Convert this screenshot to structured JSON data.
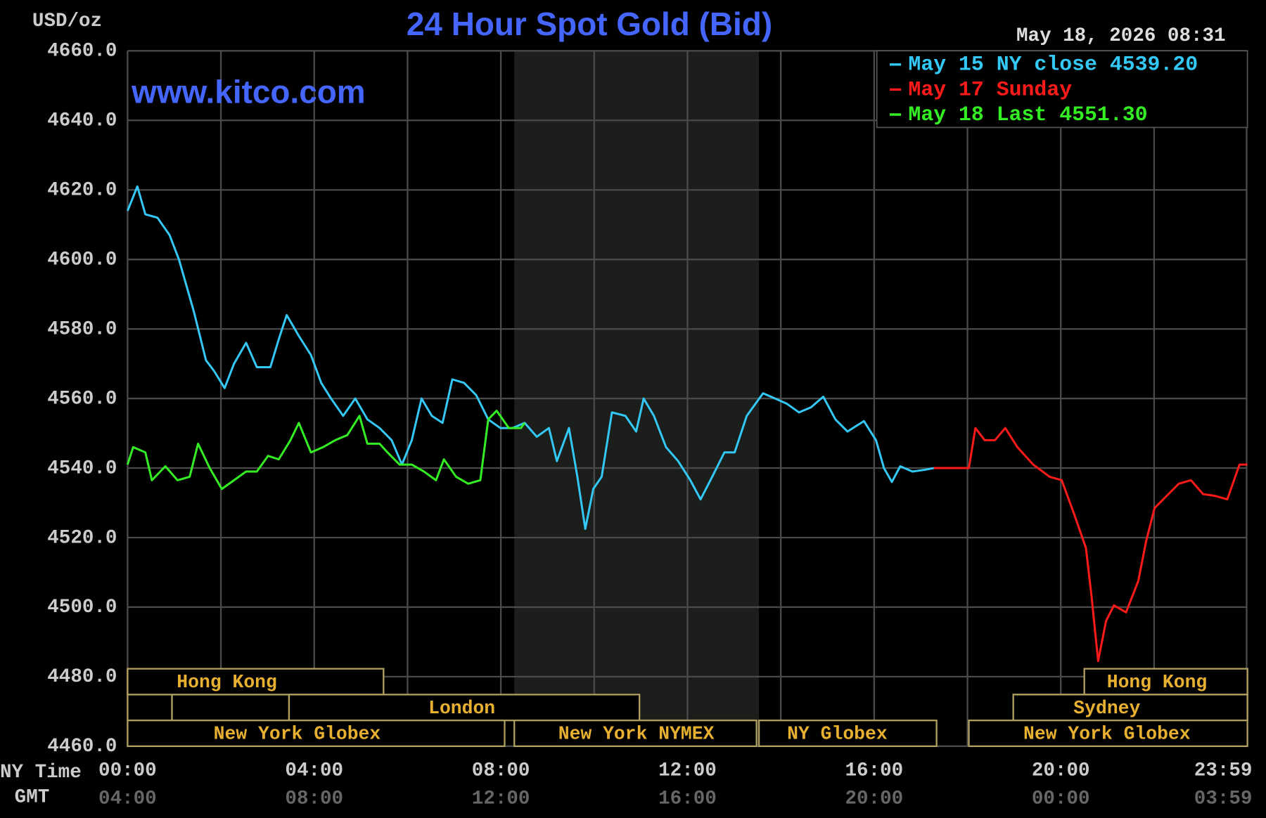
{
  "chart_data": {
    "type": "line",
    "title": "24 Hour Spot Gold (Bid)",
    "y_label": "USD/oz",
    "timestamp": "May 18, 2026 08:31",
    "watermark": "www.kitco.com",
    "x_label": "NY Time",
    "x2_label": "GMT",
    "xlim": [
      0,
      24
    ],
    "xticks": [
      {
        "value": 0,
        "label": "00:00"
      },
      {
        "value": 4,
        "label": "04:00"
      },
      {
        "value": 8,
        "label": "08:00"
      },
      {
        "value": 12,
        "label": "12:00"
      },
      {
        "value": 16,
        "label": "16:00"
      },
      {
        "value": 20,
        "label": "20:00"
      },
      {
        "value": 23.9833,
        "label": "23:59"
      }
    ],
    "x2tick_labels": [
      "04:00",
      "08:00",
      "12:00",
      "16:00",
      "20:00",
      "00:00",
      "03:59"
    ],
    "minor_xticks": [
      2,
      6,
      10,
      14,
      18,
      22
    ],
    "ylim": [
      4460,
      4660
    ],
    "yticks": [
      {
        "value": 4460,
        "label": "4460.0"
      },
      {
        "value": 4480,
        "label": "4480.0"
      },
      {
        "value": 4500,
        "label": "4500.0"
      },
      {
        "value": 4520,
        "label": "4520.0"
      },
      {
        "value": 4540,
        "label": "4540.0"
      },
      {
        "value": 4560,
        "label": "4560.0"
      },
      {
        "value": 4580,
        "label": "4580.0"
      },
      {
        "value": 4600,
        "label": "4600.0"
      },
      {
        "value": 4620,
        "label": "4620.0"
      },
      {
        "value": 4640,
        "label": "4640.0"
      },
      {
        "value": 4660,
        "label": "4660.0"
      }
    ],
    "grid": true,
    "legend": "top-right",
    "sessions": [
      "Hong Kong",
      "London",
      "New York Globex",
      "New York NYMEX",
      "NY Globex",
      "Hong Kong",
      "Sydney",
      "New York Globex"
    ],
    "series": [
      {
        "name": "May 15 NY close 4539.20",
        "color": "#33c8f5",
        "x": [
          0,
          0.21,
          0.38,
          0.64,
          0.9,
          1.1,
          1.42,
          1.68,
          1.85,
          2.08,
          2.28,
          2.54,
          2.77,
          3.06,
          3.24,
          3.41,
          3.67,
          3.93,
          4.15,
          4.36,
          4.62,
          4.88,
          5.14,
          5.4,
          5.66,
          5.88,
          6.09,
          6.3,
          6.52,
          6.75,
          6.96,
          7.21,
          7.47,
          7.73,
          7.99,
          8.25,
          8.51,
          8.77,
          9.03,
          9.2,
          9.46,
          9.64,
          9.81,
          9.98,
          10.16,
          10.38,
          10.67,
          10.9,
          11.06,
          11.28,
          11.54,
          11.8,
          12.06,
          12.28,
          12.53,
          12.79,
          13.01,
          13.27,
          13.62,
          13.88,
          14.13,
          14.39,
          14.65,
          14.91,
          15.17,
          15.43,
          15.78,
          16.04,
          16.21,
          16.38,
          16.56,
          16.82,
          17.08,
          17.28
        ],
        "values": [
          4614,
          4621,
          4613,
          4612,
          4607,
          4600,
          4585,
          4571,
          4568,
          4563,
          4570,
          4576,
          4569,
          4569,
          4577,
          4584,
          4578,
          4572.5,
          4564.5,
          4560,
          4555,
          4560,
          4554,
          4551.5,
          4548,
          4541,
          4548,
          4560,
          4555,
          4553,
          4565.5,
          4564.5,
          4561,
          4554,
          4551.5,
          4551.5,
          4553,
          4549,
          4551.5,
          4542,
          4551.5,
          4537.5,
          4522.5,
          4534,
          4537.5,
          4556,
          4555,
          4550.5,
          4560,
          4555,
          4546,
          4542,
          4536.5,
          4531,
          4537.5,
          4544.5,
          4544.5,
          4555,
          4561.5,
          4560,
          4558.5,
          4556,
          4557.5,
          4560.5,
          4554,
          4550.5,
          4553.5,
          4548,
          4540,
          4536,
          4540.5,
          4539,
          4539.5,
          4540
        ]
      },
      {
        "name": "May 17 Sunday",
        "color": "#ff1a1a",
        "x": [
          17.28,
          18.03,
          18.17,
          18.37,
          18.59,
          18.81,
          19.07,
          19.41,
          19.76,
          20.02,
          20.28,
          20.54,
          20.66,
          20.8,
          20.97,
          21.14,
          21.4,
          21.66,
          21.83,
          22.01,
          22.27,
          22.53,
          22.79,
          23.05,
          23.31,
          23.57,
          23.83,
          24
        ],
        "values": [
          4540,
          4540,
          4551.5,
          4548,
          4548,
          4551.5,
          4546,
          4541,
          4537.5,
          4536.5,
          4527,
          4517,
          4503,
          4484.5,
          4496,
          4500.5,
          4498.5,
          4507.5,
          4519,
          4528.5,
          4532,
          4535.5,
          4536.5,
          4532.5,
          4532,
          4531,
          4541,
          4541
        ]
      },
      {
        "name": "May 18 Last 4551.30",
        "color": "#33ee22",
        "x": [
          0,
          0.12,
          0.38,
          0.52,
          0.81,
          1.07,
          1.33,
          1.51,
          1.76,
          2.02,
          2.28,
          2.54,
          2.77,
          3.01,
          3.24,
          3.49,
          3.67,
          3.93,
          4.19,
          4.45,
          4.71,
          4.97,
          5.14,
          5.4,
          5.57,
          5.83,
          6.09,
          6.35,
          6.61,
          6.78,
          7.04,
          7.3,
          7.56,
          7.73,
          7.91,
          8.17,
          8.43,
          8.51
        ],
        "values": [
          4541,
          4546,
          4544.5,
          4536.5,
          4540.5,
          4536.5,
          4537.5,
          4547,
          4540,
          4534,
          4536.5,
          4539,
          4539,
          4543.5,
          4542.5,
          4548,
          4553,
          4544.5,
          4546,
          4548,
          4549.5,
          4555,
          4547,
          4547,
          4544.5,
          4541,
          4541,
          4539,
          4536.5,
          4542.5,
          4537.5,
          4535.5,
          4536.5,
          4554,
          4556.5,
          4551.5,
          4551.5,
          4553
        ]
      }
    ]
  }
}
